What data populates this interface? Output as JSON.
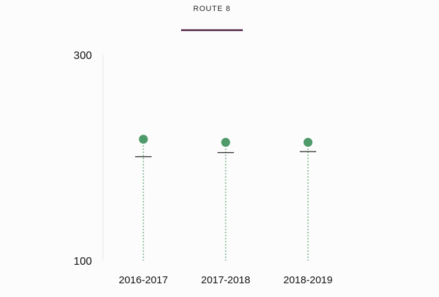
{
  "chart_data": {
    "type": "scatter",
    "title": "ROUTE 8",
    "title_underline_color": "#4a1f3f",
    "categories": [
      "2016-2017",
      "2017-2018",
      "2018-2019"
    ],
    "ylim": [
      100,
      300
    ],
    "y_ticks": [
      {
        "value": 300,
        "label": "300"
      },
      {
        "value": 100,
        "label": "100"
      }
    ],
    "grid": false,
    "series": [
      {
        "values": [
          218,
          215,
          215
        ],
        "color": "#4f9a6a",
        "marker": "circle"
      },
      {
        "values": [
          201,
          205,
          206
        ],
        "color": "#222222",
        "marker": "dash"
      }
    ],
    "stem_color": "#4f9a6a"
  }
}
